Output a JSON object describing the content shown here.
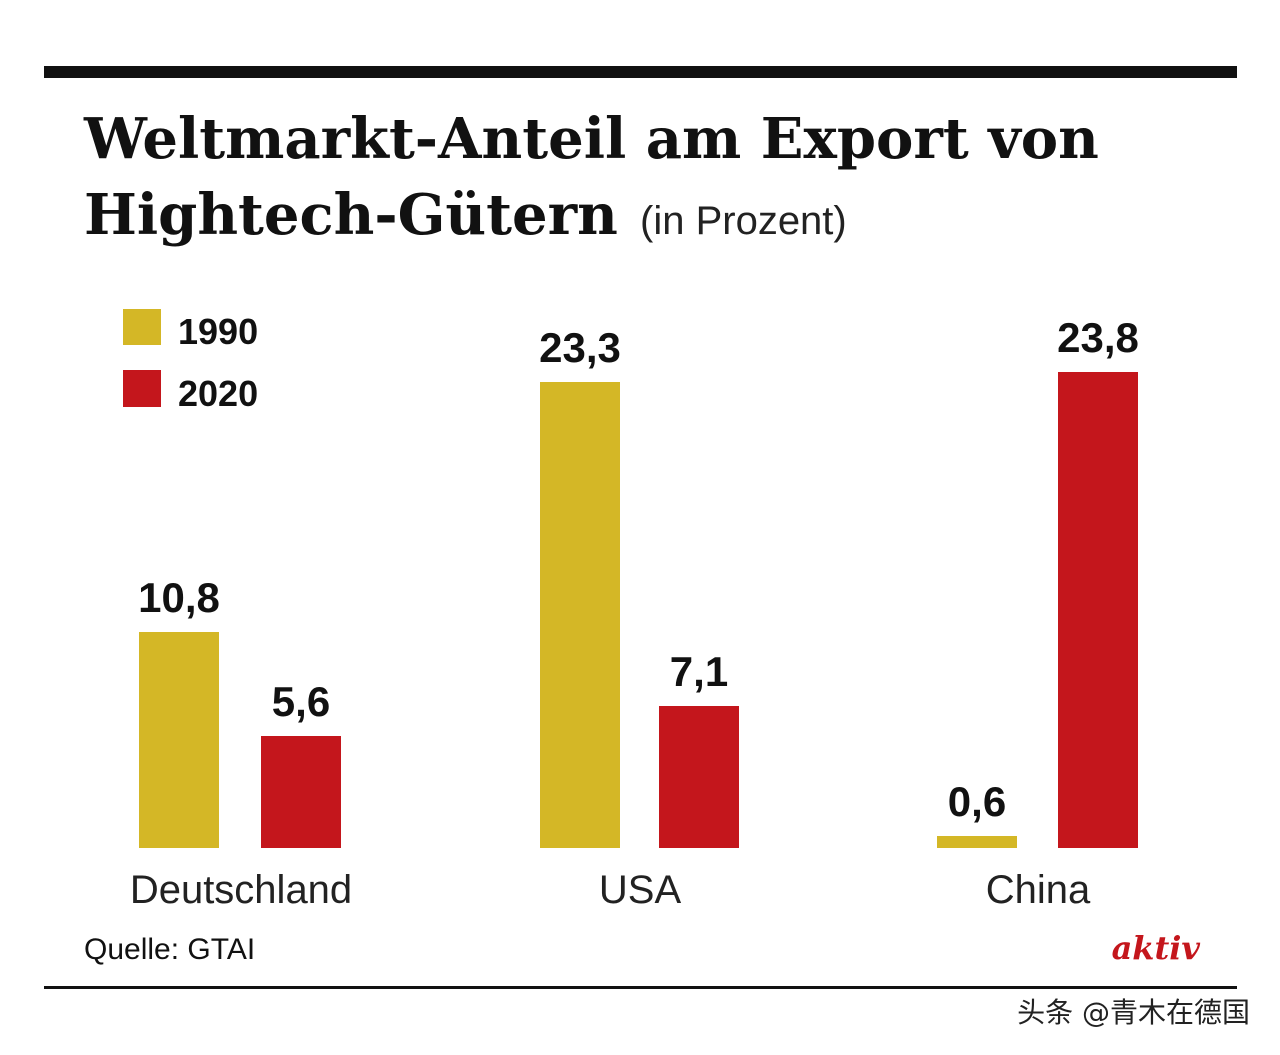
{
  "chart_data": {
    "type": "bar",
    "title": "Weltmarkt-Anteil am Export von Hightech-Gütern",
    "title_line1": "Weltmarkt-Anteil am Export von",
    "title_line2": "Hightech-Gütern",
    "subtitle": "(in Prozent)",
    "categories": [
      "Deutschland",
      "USA",
      "China"
    ],
    "series": [
      {
        "name": "1990",
        "values": [
          10.8,
          23.3,
          0.6
        ],
        "labels": [
          "10,8",
          "23,3",
          "0,6"
        ],
        "color": "#d4b726"
      },
      {
        "name": "2020",
        "values": [
          5.6,
          7.1,
          23.8
        ],
        "labels": [
          "5,6",
          "7,1",
          "23,8"
        ],
        "color": "#c4161c"
      }
    ],
    "legend_placement": "top-left",
    "grid": false,
    "ylim": [
      0,
      25
    ]
  },
  "source": "Quelle: GTAI",
  "logo": "aktiv",
  "watermark": "头条 @青木在德国",
  "colors": {
    "logo": "#c4161c",
    "rule": "#111111"
  }
}
